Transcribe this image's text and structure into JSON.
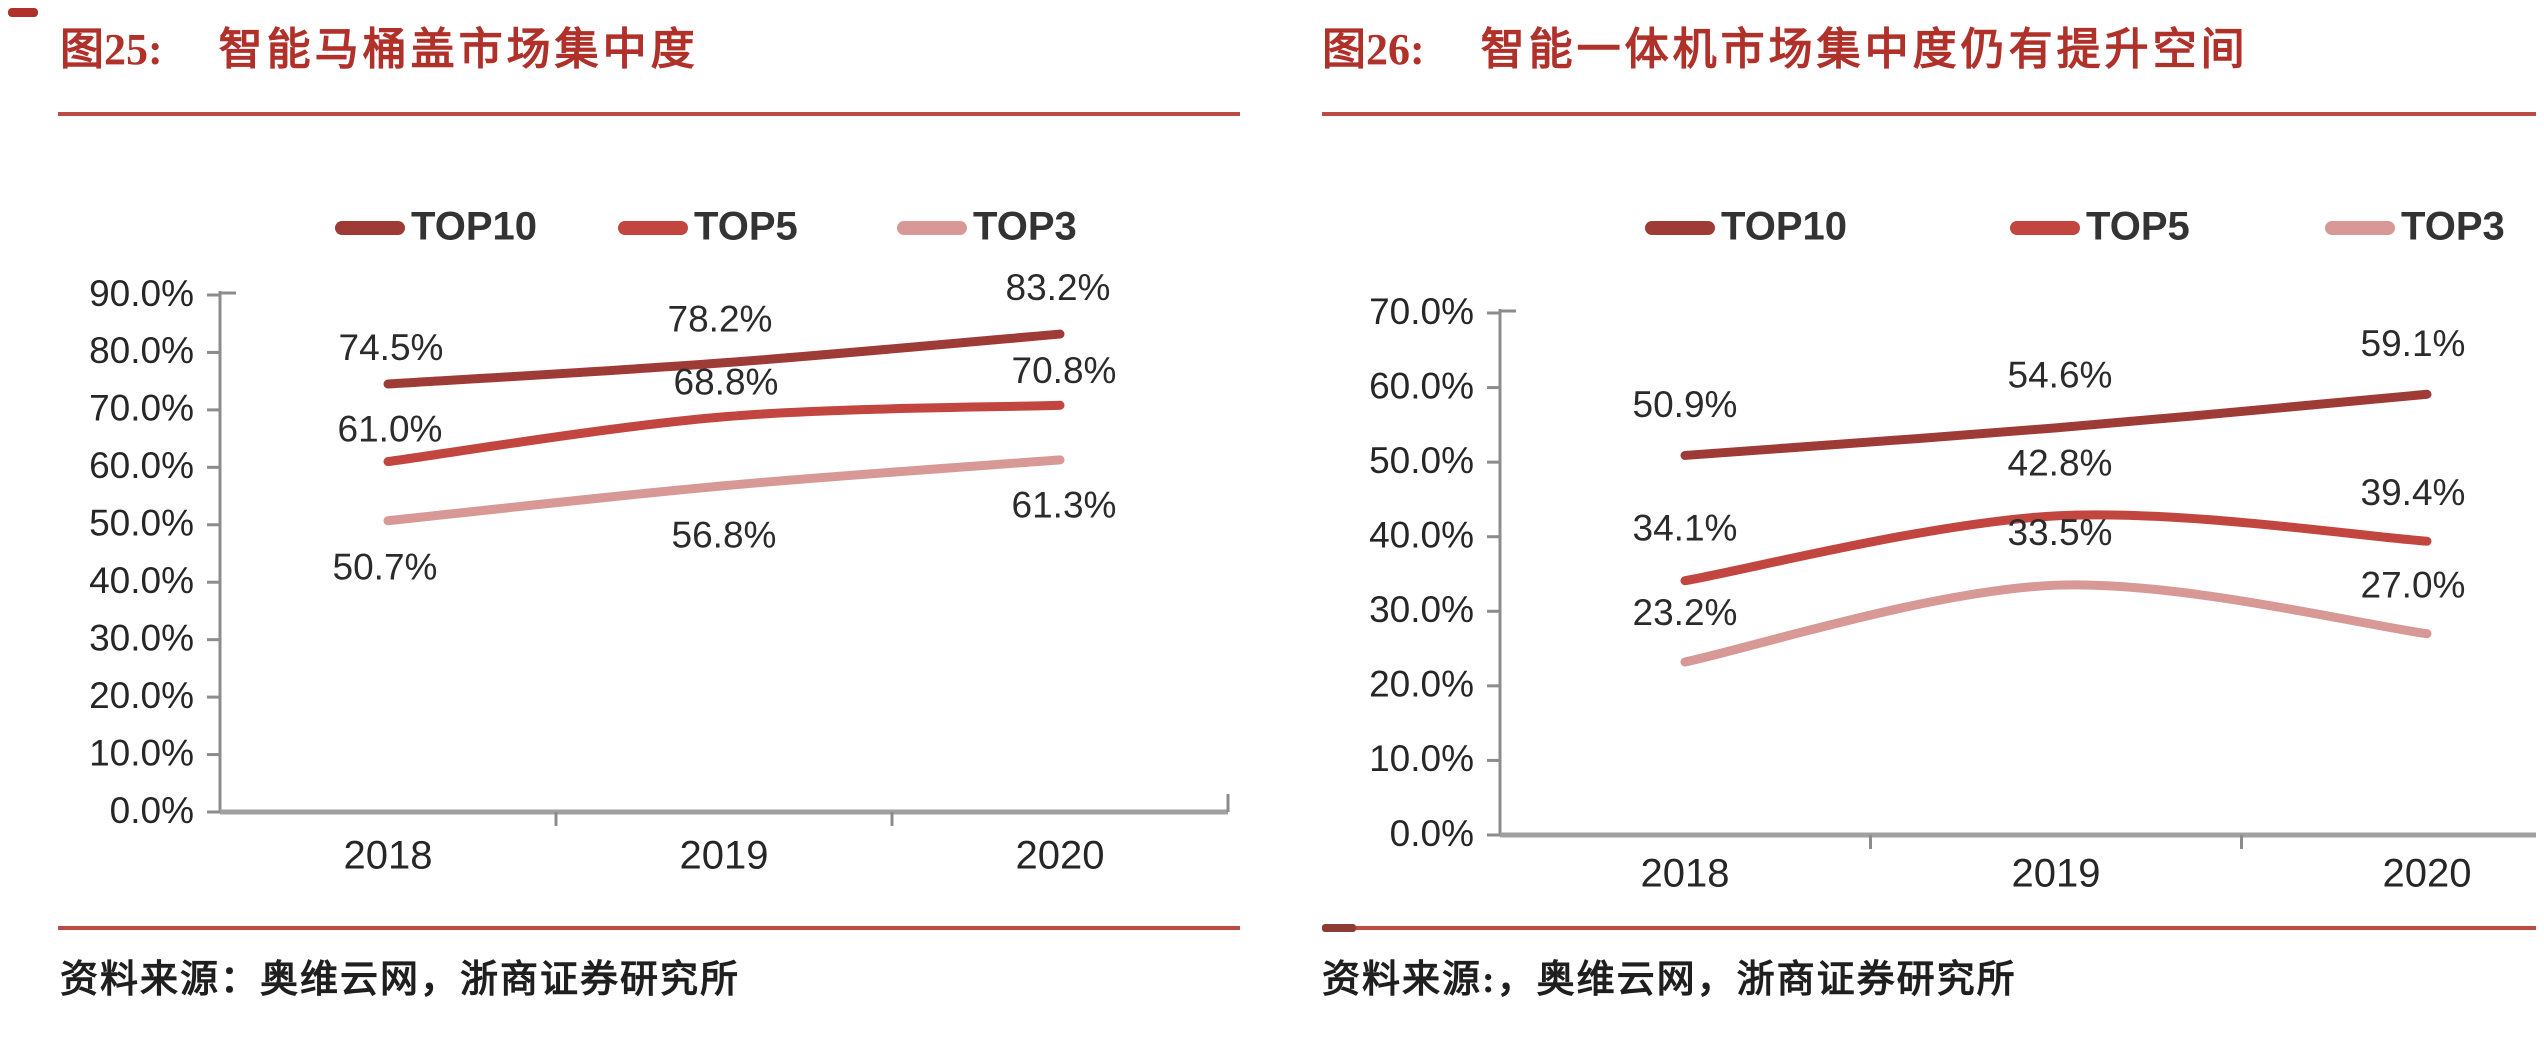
{
  "colors": {
    "title_red": "#B0302A",
    "rule_red": "#BC4B44",
    "rule_dark_dash": "#8E3B35",
    "axis_gray": "#8C8C8C",
    "baseline_gray": "#A0A0A0",
    "tick_text": "#262626",
    "data_label_text": "#2B2B2B",
    "legend_text": "#333333"
  },
  "figures": [
    {
      "key": "fig25",
      "fig_label": "图25:",
      "title": "智能马桶盖市场集中度",
      "source_prefix": "资料来源：",
      "source": "奥维云网，浙商证券研究所",
      "chart_data": {
        "type": "line",
        "categories": [
          "2018",
          "2019",
          "2020"
        ],
        "series": [
          {
            "name": "TOP10",
            "color": "#9E3B37",
            "values": [
              74.5,
              78.2,
              83.2
            ],
            "labels": [
              "74.5%",
              "78.2%",
              "83.2%"
            ]
          },
          {
            "name": "TOP5",
            "color": "#C2463F",
            "values": [
              61.0,
              68.8,
              70.8
            ],
            "labels": [
              "61.0%",
              "68.8%",
              "70.8%"
            ]
          },
          {
            "name": "TOP3",
            "color": "#D79896",
            "values": [
              50.7,
              56.8,
              61.3
            ],
            "labels": [
              "50.7%",
              "56.8%",
              "61.3%"
            ]
          }
        ],
        "ylim": [
          0,
          90
        ],
        "ytick_step": 10,
        "ytick_labels": [
          "0.0%",
          "10.0%",
          "20.0%",
          "30.0%",
          "40.0%",
          "50.0%",
          "60.0%",
          "70.0%",
          "80.0%",
          "90.0%"
        ],
        "grid": false,
        "legend_position": "top"
      }
    },
    {
      "key": "fig26",
      "fig_label": "图26:",
      "title": "智能一体机市场集中度仍有提升空间",
      "source_prefix": "资料来源:，",
      "source": "奥维云网，浙商证券研究所",
      "chart_data": {
        "type": "line",
        "categories": [
          "2018",
          "2019",
          "2020"
        ],
        "series": [
          {
            "name": "TOP10",
            "color": "#9E3B37",
            "values": [
              50.9,
              54.6,
              59.1
            ],
            "labels": [
              "50.9%",
              "54.6%",
              "59.1%"
            ]
          },
          {
            "name": "TOP5",
            "color": "#C2463F",
            "values": [
              34.1,
              42.8,
              39.4
            ],
            "labels": [
              "34.1%",
              "42.8%",
              "39.4%"
            ]
          },
          {
            "name": "TOP3",
            "color": "#D79896",
            "values": [
              23.2,
              33.5,
              27.0
            ],
            "labels": [
              "23.2%",
              "33.5%",
              "27.0%"
            ]
          }
        ],
        "ylim": [
          0,
          70
        ],
        "ytick_step": 10,
        "ytick_labels": [
          "0.0%",
          "10.0%",
          "20.0%",
          "30.0%",
          "40.0%",
          "50.0%",
          "60.0%",
          "70.0%"
        ],
        "grid": false,
        "legend_position": "top"
      }
    }
  ]
}
